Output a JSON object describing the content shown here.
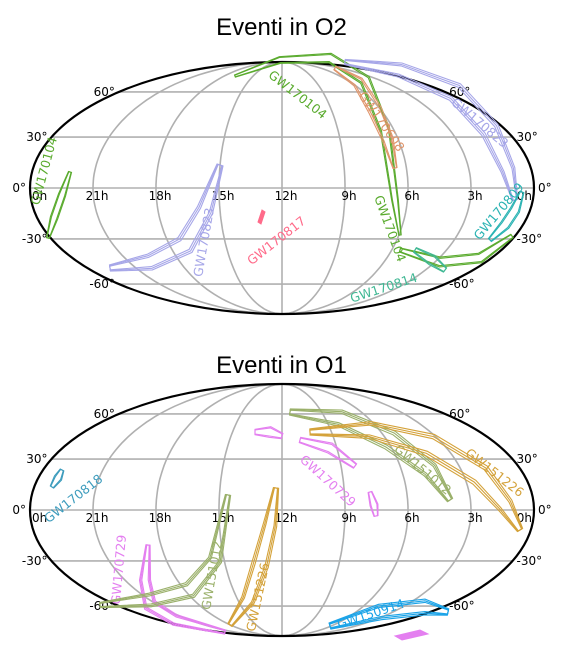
{
  "chart_data": [
    {
      "type": "skymap",
      "title": "Eventi in O2",
      "projection": "Mollweide",
      "ra_tick_labels": [
        "0h",
        "21h",
        "18h",
        "15h",
        "12h",
        "9h",
        "6h",
        "3h",
        "0h"
      ],
      "dec_tick_labels_left": [
        "60°",
        "30°",
        "0°",
        "-30°",
        "-60°"
      ],
      "dec_tick_labels_right": [
        "60°",
        "30°",
        "0°",
        "-30°",
        "-60°"
      ],
      "grid": true,
      "events": [
        {
          "name": "GW170104",
          "color": "#5aab2e"
        },
        {
          "name": "GW170608",
          "color": "#e0956b"
        },
        {
          "name": "GW170823",
          "color": "#a6a6e8"
        },
        {
          "name": "GW170809",
          "color": "#2ab3b3"
        },
        {
          "name": "GW170814",
          "color": "#40b894"
        },
        {
          "name": "GW170817",
          "color": "#ff6b8a"
        }
      ]
    },
    {
      "type": "skymap",
      "title": "Eventi in O1",
      "projection": "Mollweide",
      "ra_tick_labels": [
        "0h",
        "21h",
        "18h",
        "15h",
        "12h",
        "9h",
        "6h",
        "3h",
        "0h"
      ],
      "dec_tick_labels_left": [
        "60°",
        "30°",
        "0°",
        "-30°",
        "-60°"
      ],
      "dec_tick_labels_right": [
        "60°",
        "30°",
        "0°",
        "-30°",
        "-60°"
      ],
      "grid": true,
      "events": [
        {
          "name": "GW170818",
          "color": "#3d9cbd"
        },
        {
          "name": "GW170729",
          "color": "#e47ff0"
        },
        {
          "name": "GW151012",
          "color": "#9ab06a"
        },
        {
          "name": "GW151226",
          "color": "#d4a23a"
        },
        {
          "name": "GW150914",
          "color": "#1aa3e8"
        }
      ]
    }
  ]
}
